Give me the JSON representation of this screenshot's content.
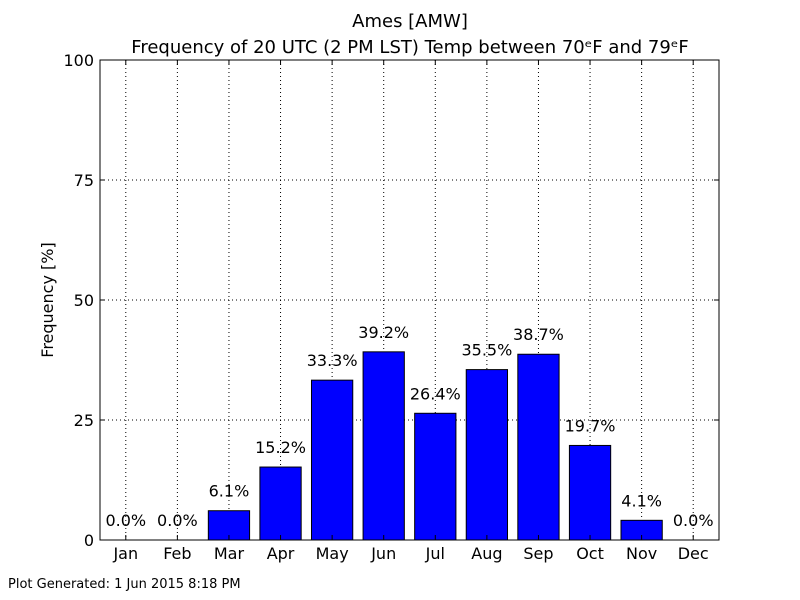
{
  "chart_data": {
    "type": "bar",
    "title": "Ames [AMW]",
    "subtitle": "Frequency of 20 UTC (2 PM LST) Temp between 70ᵉF and 79ᵉF",
    "xlabel": "",
    "ylabel": "Frequency [%]",
    "ylim": [
      0,
      100
    ],
    "yticks": [
      0,
      25,
      50,
      75,
      100
    ],
    "grid": true,
    "categories": [
      "Jan",
      "Feb",
      "Mar",
      "Apr",
      "May",
      "Jun",
      "Jul",
      "Aug",
      "Sep",
      "Oct",
      "Nov",
      "Dec"
    ],
    "values": [
      0.0,
      0.0,
      6.1,
      15.2,
      33.3,
      39.2,
      26.4,
      35.5,
      38.7,
      19.7,
      4.1,
      0.0
    ],
    "data_labels": [
      "0.0%",
      "0.0%",
      "6.1%",
      "15.2%",
      "33.3%",
      "39.2%",
      "26.4%",
      "35.5%",
      "38.7%",
      "19.7%",
      "4.1%",
      "0.0%"
    ],
    "bar_color": "#0000ff"
  },
  "footer": "Plot Generated: 1 Jun 2015 8:18 PM"
}
